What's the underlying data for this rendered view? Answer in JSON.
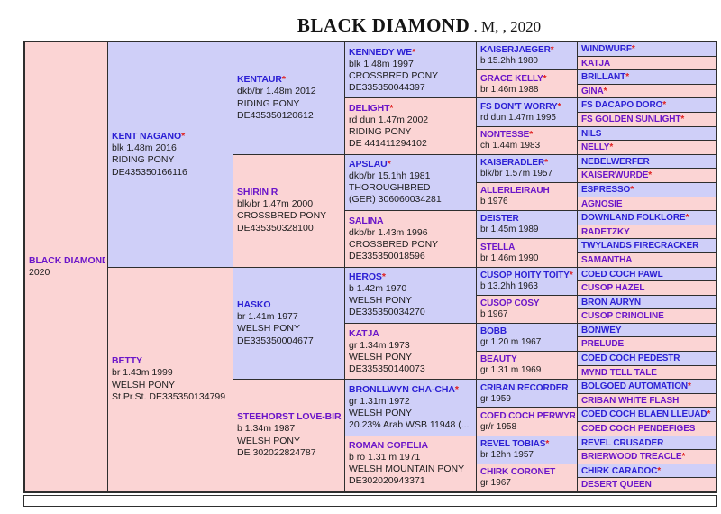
{
  "title": {
    "name": "BLACK DIAMOND",
    "suffix": " . M, , 2020"
  },
  "colors": {
    "sire_bg": "#cfcff8",
    "dam_bg": "#fbd4d4",
    "name_sire": "#2b1fd4",
    "name_dam": "#6b15c9",
    "star": "#e02020"
  },
  "root": {
    "name": "BLACK DIAMOND",
    "star": "",
    "lines": [
      "2020",
      "",
      ""
    ]
  },
  "gen1": [
    {
      "name": "KENT NAGANO",
      "star": "*",
      "lines": [
        "blk 1.48m 2016",
        "RIDING PONY",
        "DE435350166116"
      ]
    },
    {
      "name": "BETTY",
      "star": "",
      "lines": [
        "br 1.43m 1999",
        "WELSH PONY",
        "St.Pr.St. DE335350134799"
      ]
    }
  ],
  "gen2": [
    {
      "name": "KENTAUR",
      "star": "*",
      "lines": [
        "dkb/br 1.48m 2012",
        "RIDING PONY",
        "DE435350120612"
      ]
    },
    {
      "name": "SHIRIN R",
      "star": "",
      "lines": [
        "blk/br 1.47m 2000",
        "CROSSBRED PONY",
        "DE435350328100"
      ]
    },
    {
      "name": "HASKO",
      "star": "",
      "lines": [
        "br 1.41m 1977",
        "WELSH PONY",
        "DE335350004677"
      ]
    },
    {
      "name": "STEEHORST LOVE-BIRD",
      "star": "*",
      "lines": [
        "b 1.34m 1987",
        "WELSH PONY",
        "DE 302022824787"
      ]
    }
  ],
  "gen3": [
    {
      "name": "KENNEDY WE",
      "star": "*",
      "lines": [
        "blk 1.48m 1997",
        "CROSSBRED PONY",
        "DE335350044397"
      ]
    },
    {
      "name": "DELIGHT",
      "star": "*",
      "lines": [
        "rd dun 1.47m 2002",
        "RIDING PONY",
        "DE 441411294102"
      ]
    },
    {
      "name": "APSLAU",
      "star": "*",
      "lines": [
        "dkb/br 15.1hh 1981",
        "THOROUGHBRED",
        "(GER) 306060034281"
      ]
    },
    {
      "name": "SALINA",
      "star": "",
      "lines": [
        "dkb/br 1.43m 1996",
        "CROSSBRED PONY",
        "DE335350018596"
      ]
    },
    {
      "name": "HEROS",
      "star": "*",
      "lines": [
        "b 1.42m 1970",
        "WELSH PONY",
        "DE335350034270"
      ]
    },
    {
      "name": "KATJA",
      "star": "",
      "lines": [
        "gr 1.34m 1973",
        "WELSH PONY",
        "DE335350140073"
      ]
    },
    {
      "name": "BRONLLWYN CHA-CHA",
      "star": "*",
      "lines": [
        "gr 1.31m 1972",
        "WELSH PONY",
        "20.23% Arab WSB 11948 (..."
      ]
    },
    {
      "name": "ROMAN COPELIA",
      "star": "",
      "lines": [
        "b ro 1.31 m 1971",
        "WELSH MOUNTAIN PONY",
        "DE302020943371"
      ]
    }
  ],
  "gen4": [
    {
      "name": "KAISERJAEGER",
      "star": "*",
      "lines": [
        "b 15.2hh 1980"
      ]
    },
    {
      "name": "GRACE KELLY",
      "star": "*",
      "lines": [
        "br 1.46m 1988"
      ]
    },
    {
      "name": "FS DON'T WORRY",
      "star": "*",
      "lines": [
        "rd dun 1.47m 1995"
      ]
    },
    {
      "name": "NONTESSE",
      "star": "*",
      "lines": [
        "ch 1.44m 1983"
      ]
    },
    {
      "name": "KAISERADLER",
      "star": "*",
      "lines": [
        "blk/br 1.57m 1957"
      ]
    },
    {
      "name": "ALLERLEIRAUH",
      "star": "",
      "lines": [
        "b 1976"
      ]
    },
    {
      "name": "DEISTER",
      "star": "",
      "lines": [
        "br 1.45m 1989"
      ]
    },
    {
      "name": "STELLA",
      "star": "",
      "lines": [
        "br 1.46m 1990"
      ]
    },
    {
      "name": "CUSOP HOITY TOITY",
      "star": "*",
      "lines": [
        "b 13.2hh 1963"
      ]
    },
    {
      "name": "CUSOP COSY",
      "star": "",
      "lines": [
        "b 1967"
      ]
    },
    {
      "name": "BOBB",
      "star": "",
      "lines": [
        "gr 1.20 m 1967"
      ]
    },
    {
      "name": "BEAUTY",
      "star": "",
      "lines": [
        "gr 1.31 m 1969"
      ]
    },
    {
      "name": "CRIBAN RECORDER",
      "star": "",
      "lines": [
        "gr 1959"
      ]
    },
    {
      "name": "COED COCH PERWYR",
      "star": "",
      "lines": [
        "gr/r 1958"
      ]
    },
    {
      "name": "REVEL TOBIAS",
      "star": "*",
      "lines": [
        "br 12hh 1957"
      ]
    },
    {
      "name": "CHIRK CORONET",
      "star": "",
      "lines": [
        "gr 1967"
      ]
    }
  ],
  "gen5": [
    {
      "name": "WINDWURF",
      "star": "*"
    },
    {
      "name": "KATJA",
      "star": ""
    },
    {
      "name": "BRILLANT",
      "star": "*"
    },
    {
      "name": "GINA",
      "star": "*"
    },
    {
      "name": "FS DACAPO DORO",
      "star": "*"
    },
    {
      "name": "FS GOLDEN SUNLIGHT",
      "star": "*"
    },
    {
      "name": "NILS",
      "star": ""
    },
    {
      "name": "NELLY",
      "star": "*"
    },
    {
      "name": "NEBELWERFER",
      "star": ""
    },
    {
      "name": "KAISERWURDE",
      "star": "*"
    },
    {
      "name": "ESPRESSO",
      "star": "*"
    },
    {
      "name": "AGNOSIE",
      "star": ""
    },
    {
      "name": "DOWNLAND FOLKLORE",
      "star": "*"
    },
    {
      "name": "RADETZKY",
      "star": ""
    },
    {
      "name": "TWYLANDS FIRECRACKER",
      "star": ""
    },
    {
      "name": "SAMANTHA",
      "star": ""
    },
    {
      "name": "COED COCH PAWL",
      "star": ""
    },
    {
      "name": "CUSOP HAZEL",
      "star": ""
    },
    {
      "name": "BRON AURYN",
      "star": ""
    },
    {
      "name": "CUSOP CRINOLINE",
      "star": ""
    },
    {
      "name": "BONWEY",
      "star": ""
    },
    {
      "name": "PRELUDE",
      "star": ""
    },
    {
      "name": "COED COCH PEDESTR",
      "star": ""
    },
    {
      "name": "MYND TELL TALE",
      "star": ""
    },
    {
      "name": "BOLGOED AUTOMATION",
      "star": "*"
    },
    {
      "name": "CRIBAN WHITE FLASH",
      "star": ""
    },
    {
      "name": "COED COCH BLAEN LLEUAD",
      "star": "*"
    },
    {
      "name": "COED COCH PENDEFIGES",
      "star": ""
    },
    {
      "name": "REVEL CRUSADER",
      "star": ""
    },
    {
      "name": "BRIERWOOD TREACLE",
      "star": "*"
    },
    {
      "name": "CHIRK CARADOC",
      "star": "*"
    },
    {
      "name": "DESERT QUEEN",
      "star": ""
    }
  ]
}
